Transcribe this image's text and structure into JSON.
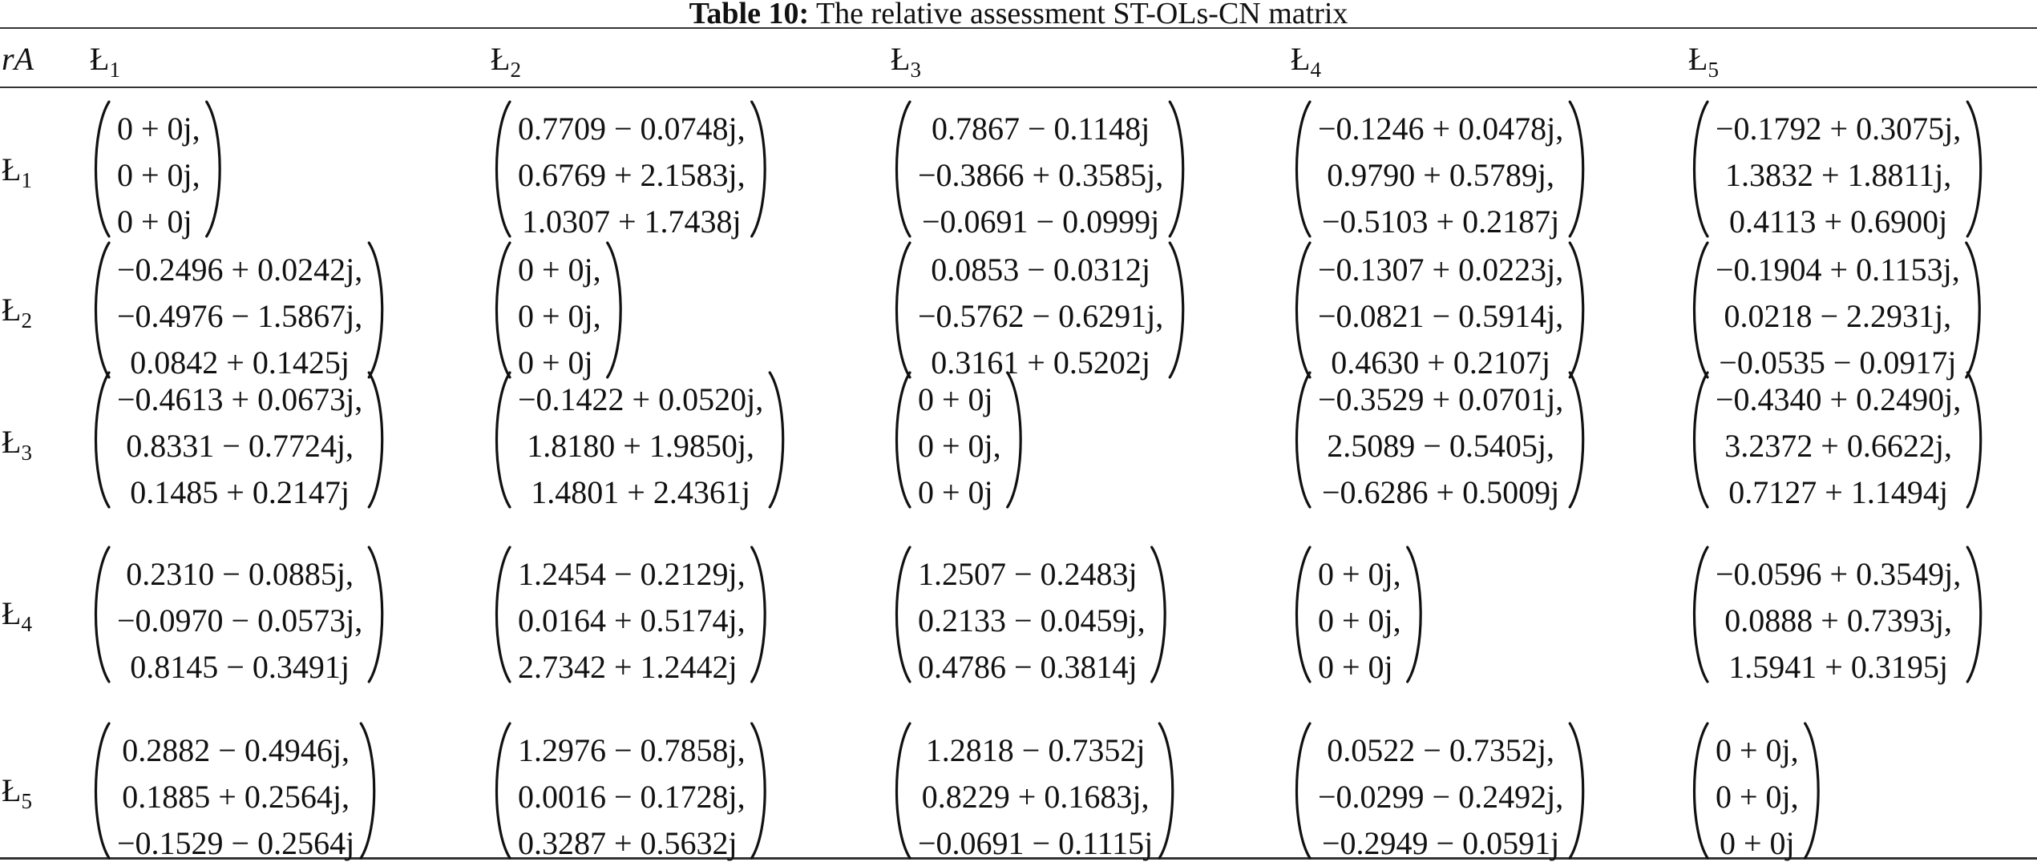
{
  "caption": {
    "label": "Table 10:",
    "text": "The relative assessment ST-OLs-CN matrix"
  },
  "header": {
    "corner": "rA",
    "columns": [
      {
        "base": "Ł",
        "sub": "1"
      },
      {
        "base": "Ł",
        "sub": "2"
      },
      {
        "base": "Ł",
        "sub": "3"
      },
      {
        "base": "Ł",
        "sub": "4"
      },
      {
        "base": "Ł",
        "sub": "5"
      }
    ]
  },
  "rows": [
    {
      "label": {
        "base": "Ł",
        "sub": "1"
      },
      "cells": [
        {
          "align": "left",
          "lines": [
            "0 + 0j,",
            "0 + 0j,",
            "0 + 0j"
          ]
        },
        {
          "align": "center",
          "lines": [
            "0.7709 − 0.0748j,",
            "0.6769 + 2.1583j,",
            "1.0307 + 1.7438j"
          ]
        },
        {
          "align": "center",
          "lines": [
            "0.7867 − 0.1148j",
            "−0.3866 + 0.3585j,",
            "−0.0691 − 0.0999j"
          ]
        },
        {
          "align": "center",
          "lines": [
            "−0.1246 + 0.0478j,",
            "0.9790 + 0.5789j,",
            "−0.5103 + 0.2187j"
          ]
        },
        {
          "align": "center",
          "lines": [
            "−0.1792 + 0.3075j,",
            "1.3832 + 1.8811j,",
            "0.4113 + 0.6900j"
          ]
        }
      ]
    },
    {
      "label": {
        "base": "Ł",
        "sub": "2"
      },
      "cells": [
        {
          "align": "center",
          "lines": [
            "−0.2496 + 0.0242j,",
            "−0.4976 − 1.5867j,",
            "0.0842 + 0.1425j"
          ]
        },
        {
          "align": "left",
          "lines": [
            "0 + 0j,",
            "0 + 0j,",
            "0 + 0j"
          ]
        },
        {
          "align": "center",
          "lines": [
            "0.0853 − 0.0312j",
            "−0.5762 − 0.6291j,",
            "0.3161 + 0.5202j"
          ]
        },
        {
          "align": "center",
          "lines": [
            "−0.1307 + 0.0223j,",
            "−0.0821 − 0.5914j,",
            "0.4630 + 0.2107j"
          ]
        },
        {
          "align": "center",
          "lines": [
            "−0.1904 + 0.1153j,",
            "0.0218 − 2.2931j,",
            "−0.0535 − 0.0917j"
          ]
        }
      ]
    },
    {
      "label": {
        "base": "Ł",
        "sub": "3"
      },
      "cells": [
        {
          "align": "center",
          "lines": [
            "−0.4613 + 0.0673j,",
            "0.8331 − 0.7724j,",
            "0.1485 + 0.2147j"
          ]
        },
        {
          "align": "center",
          "lines": [
            "−0.1422 + 0.0520j,",
            "1.8180 + 1.9850j,",
            "1.4801 + 2.4361j"
          ]
        },
        {
          "align": "left",
          "lines": [
            "0 + 0j",
            "0 + 0j,",
            "0 + 0j"
          ]
        },
        {
          "align": "center",
          "lines": [
            "−0.3529 + 0.0701j,",
            "2.5089 − 0.5405j,",
            "−0.6286 + 0.5009j"
          ]
        },
        {
          "align": "center",
          "lines": [
            "−0.4340 + 0.2490j,",
            "3.2372 + 0.6622j,",
            "0.7127 + 1.1494j"
          ]
        }
      ]
    },
    {
      "label": {
        "base": "Ł",
        "sub": "4"
      },
      "cells": [
        {
          "align": "center",
          "lines": [
            "0.2310 − 0.0885j,",
            "−0.0970 − 0.0573j,",
            "0.8145 − 0.3491j"
          ]
        },
        {
          "align": "left",
          "lines": [
            "1.2454 − 0.2129j,",
            "0.0164 + 0.5174j,",
            "2.7342 + 1.2442j"
          ]
        },
        {
          "align": "left",
          "lines": [
            "1.2507 − 0.2483j",
            "0.2133 − 0.0459j,",
            "0.4786 − 0.3814j"
          ]
        },
        {
          "align": "left",
          "lines": [
            "0 + 0j,",
            "0 + 0j,",
            "0 + 0j"
          ]
        },
        {
          "align": "center",
          "lines": [
            "−0.0596 + 0.3549j,",
            "0.0888 + 0.7393j,",
            "1.5941 + 0.3195j"
          ]
        }
      ]
    },
    {
      "label": {
        "base": "Ł",
        "sub": "5"
      },
      "cells": [
        {
          "align": "center",
          "lines": [
            "0.2882 − 0.4946j,",
            "0.1885 + 0.2564j,",
            "−0.1529 − 0.2564j"
          ]
        },
        {
          "align": "left",
          "lines": [
            "1.2976 − 0.7858j,",
            "0.0016 − 0.1728j,",
            "0.3287 + 0.5632j"
          ]
        },
        {
          "align": "center",
          "lines": [
            "1.2818 − 0.7352j",
            "0.8229 + 0.1683j,",
            "−0.0691 − 0.1115j"
          ]
        },
        {
          "align": "center",
          "lines": [
            "0.0522 − 0.7352j,",
            "−0.0299 − 0.2492j,",
            "−0.2949 − 0.0591j"
          ]
        },
        {
          "align": "center",
          "lines": [
            "0 + 0j,",
            "0 + 0j,",
            "0 + 0j"
          ]
        }
      ]
    }
  ]
}
